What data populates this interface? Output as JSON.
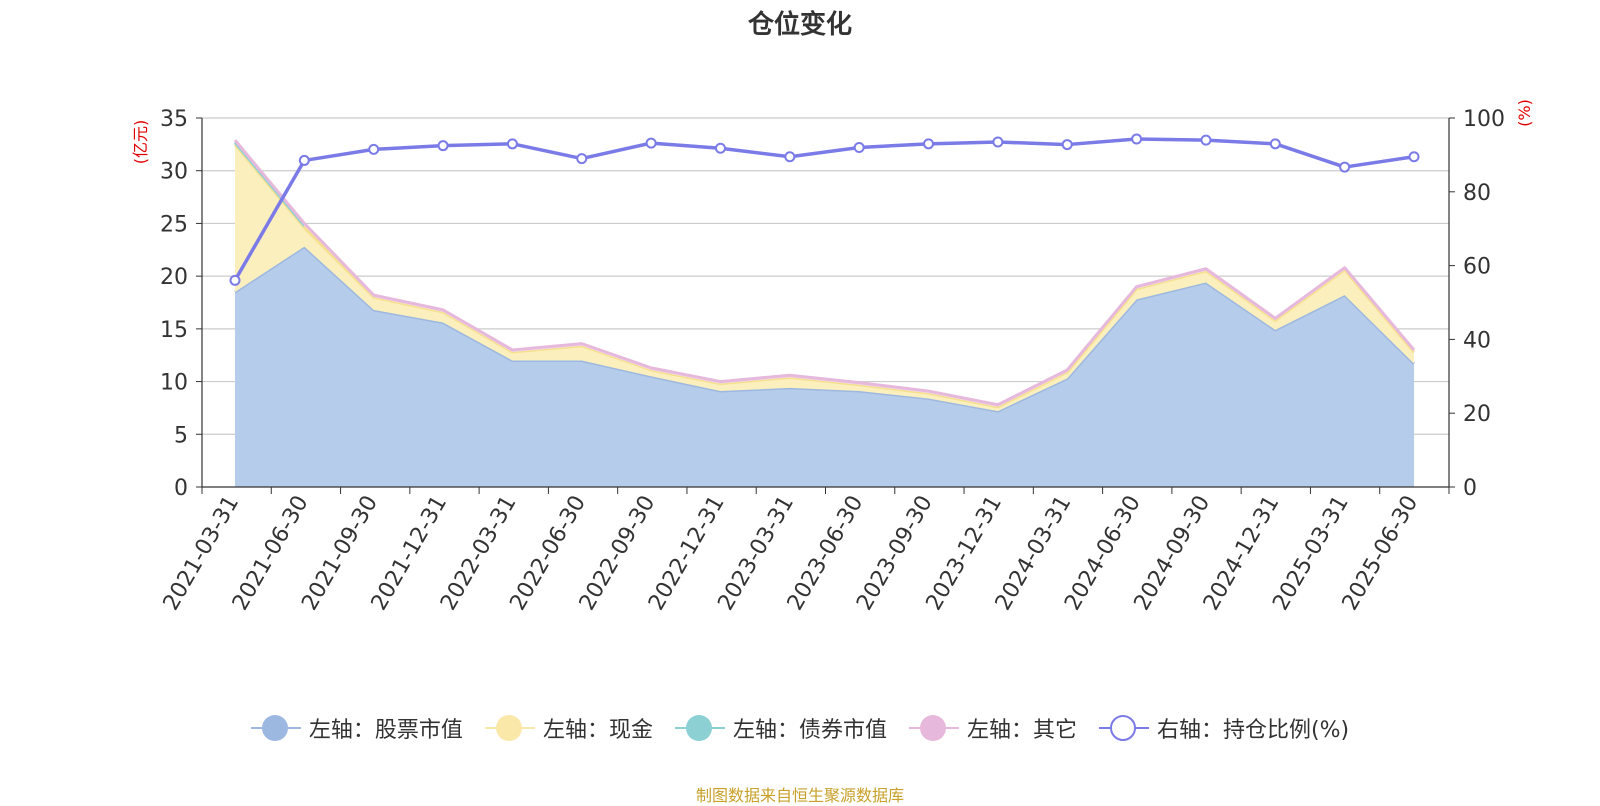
{
  "source_note": "制图数据来自恒生聚源数据库",
  "legend": [
    {
      "label": "左轴：股票市值",
      "color": "#9db8e0",
      "hollow": false
    },
    {
      "label": "左轴：现金",
      "color": "#f9e8a8",
      "hollow": false
    },
    {
      "label": "左轴：债券市值",
      "color": "#8dd0d4",
      "hollow": false
    },
    {
      "label": "左轴：其它",
      "color": "#e6b8dc",
      "hollow": false
    },
    {
      "label": "右轴：持仓比例(%)",
      "color": "#7b7be8",
      "hollow": true
    }
  ],
  "chart_data": {
    "type": "area",
    "title": "仓位变化",
    "ylabel_left": "(亿元)",
    "ylabel_right": "(%)",
    "ylim_left": [
      0,
      35
    ],
    "yticks_left": [
      0,
      5,
      10,
      15,
      20,
      25,
      30,
      35
    ],
    "ylim_right": [
      0,
      100
    ],
    "yticks_right": [
      0,
      20,
      40,
      60,
      80,
      100
    ],
    "grid": true,
    "legend_position": "bottom",
    "categories": [
      "2021-03-31",
      "2021-06-30",
      "2021-09-30",
      "2021-12-31",
      "2022-03-31",
      "2022-06-30",
      "2022-09-30",
      "2022-12-31",
      "2023-03-31",
      "2023-06-30",
      "2023-09-30",
      "2023-12-31",
      "2024-03-31",
      "2024-06-30",
      "2024-09-30",
      "2024-12-31",
      "2025-03-31",
      "2025-06-30"
    ],
    "series": [
      {
        "name": "左轴：股票市值",
        "axis": "left",
        "stacked": true,
        "color": "#9db8e0",
        "fill": "#b6cceb",
        "values": [
          18.5,
          22.8,
          16.8,
          15.6,
          12.0,
          12.0,
          10.5,
          9.1,
          9.4,
          9.1,
          8.4,
          7.2,
          10.3,
          17.8,
          19.4,
          14.9,
          18.2,
          11.7
        ]
      },
      {
        "name": "左轴：现金",
        "axis": "left",
        "stacked": true,
        "color": "#f5e08e",
        "fill": "#fbefbe",
        "values": [
          14.0,
          1.8,
          1.2,
          1.0,
          0.8,
          1.4,
          0.6,
          0.7,
          1.0,
          0.6,
          0.5,
          0.4,
          0.6,
          1.0,
          1.1,
          0.9,
          2.4,
          1.1
        ]
      },
      {
        "name": "左轴：债券市值",
        "axis": "left",
        "stacked": true,
        "color": "#8dd0d4",
        "fill": "#bfe6e8",
        "values": [
          0.2,
          0.2,
          null,
          null,
          null,
          null,
          null,
          null,
          null,
          null,
          null,
          null,
          null,
          null,
          null,
          null,
          null,
          null
        ]
      },
      {
        "name": "左轴：其它",
        "axis": "left",
        "stacked": true,
        "color": "#e6b8dc",
        "fill": "#f1d9ec",
        "values": [
          0.2,
          0.2,
          0.2,
          0.2,
          0.2,
          0.2,
          0.2,
          0.2,
          0.2,
          0.2,
          0.2,
          0.2,
          0.2,
          0.2,
          0.2,
          0.2,
          0.2,
          0.2
        ]
      },
      {
        "name": "右轴：持仓比例(%)",
        "axis": "right",
        "type": "line",
        "color": "#7b7be8",
        "values": [
          56,
          88.5,
          91.5,
          92.5,
          93.0,
          89.0,
          93.2,
          91.8,
          89.5,
          92.0,
          93.0,
          93.5,
          92.8,
          94.3,
          94.0,
          93.0,
          86.7,
          89.5
        ]
      }
    ]
  }
}
